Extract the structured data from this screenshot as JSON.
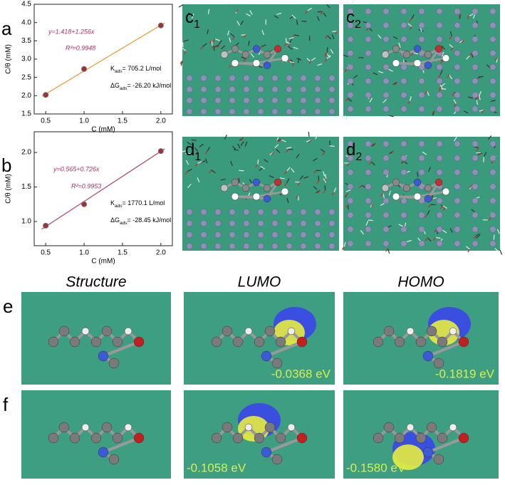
{
  "chart_data": [
    {
      "type": "scatter",
      "panel": "a",
      "x": [
        0.5,
        1.0,
        2.0
      ],
      "values": [
        2.02,
        2.73,
        3.92
      ],
      "color": "#a0303a",
      "xlim": [
        0.35,
        2.15
      ],
      "ylim": [
        1.5,
        4.5
      ],
      "xticks": [
        {
          "value": 0.5,
          "label": "0.5"
        },
        {
          "value": 1.0,
          "label": "1.0"
        },
        {
          "value": 1.5,
          "label": "1.5"
        },
        {
          "value": 2.0,
          "label": "2.0"
        }
      ],
      "yticks": [
        {
          "value": 1.5,
          "label": "1.5"
        },
        {
          "value": 2.0,
          "label": "2.0"
        },
        {
          "value": 2.5,
          "label": "2.5"
        },
        {
          "value": 3.0,
          "label": "3.0"
        },
        {
          "value": 3.5,
          "label": "3.5"
        },
        {
          "value": 4.0,
          "label": "4.0"
        },
        {
          "value": 4.5,
          "label": "4.5"
        }
      ],
      "xlabel": "C (mM)",
      "ylabel": "C/θ (mM)",
      "fit": {
        "label": "y=1.418+1.256x",
        "intercept": 1.418,
        "slope": 1.256,
        "color": "#e8a040"
      },
      "r2": "R²=0.9948",
      "kads": {
        "symbol": "K",
        "sub": "ads",
        "text": "= 705.2 L/mol"
      },
      "dgads": {
        "symbol": "ΔG",
        "sub": "ads",
        "text": "= -26.20 kJ/mol"
      }
    },
    {
      "type": "scatter",
      "panel": "b",
      "x": [
        0.5,
        1.0,
        2.0
      ],
      "values": [
        0.94,
        1.25,
        2.02
      ],
      "color": "#a0303a",
      "xlim": [
        0.35,
        2.15
      ],
      "ylim": [
        0.65,
        2.3
      ],
      "xticks": [
        {
          "value": 0.5,
          "label": "0.5"
        },
        {
          "value": 1.0,
          "label": "1.0"
        },
        {
          "value": 1.5,
          "label": "1.5"
        },
        {
          "value": 2.0,
          "label": "2.0"
        }
      ],
      "yticks": [
        {
          "value": 1.0,
          "label": "1.0"
        },
        {
          "value": 1.5,
          "label": "1.5"
        },
        {
          "value": 2.0,
          "label": "2.0"
        }
      ],
      "xlabel": "C (mM)",
      "ylabel": "C/θ (mM)",
      "fit": {
        "label": "y=0.565+0.726x",
        "intercept": 0.565,
        "slope": 0.726,
        "color": "#b05070"
      },
      "r2": "R²=0.9953",
      "kads": {
        "symbol": "K",
        "sub": "ads",
        "text": "= 1770.1 L/mol"
      },
      "dgads": {
        "symbol": "ΔG",
        "sub": "ads",
        "text": "= -28.45 kJ/mol"
      }
    }
  ],
  "snapshots": [
    {
      "letter": "c",
      "sub": "1"
    },
    {
      "letter": "c",
      "sub": "2"
    },
    {
      "letter": "d",
      "sub": "1"
    },
    {
      "letter": "d",
      "sub": "2"
    }
  ],
  "columns": [
    "Structure",
    "LUMO",
    "HOMO"
  ],
  "rows": [
    {
      "label": "e",
      "energies": [
        "-0.0368 eV",
        "-0.1819 eV"
      ]
    },
    {
      "label": "f",
      "energies": [
        "-0.1058 eV",
        "-0.1580 eV"
      ]
    }
  ]
}
